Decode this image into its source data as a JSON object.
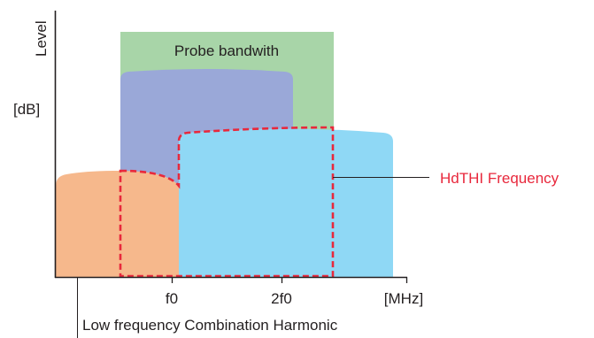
{
  "diagram": {
    "y_axis_label": "Level",
    "y_unit_label": "[dB]",
    "x_unit_label": "[MHz]",
    "x_tick_labels": [
      "f0",
      "2f0"
    ],
    "probe_bandwidth_label": "Probe bandwith",
    "hdthi_label": "HdTHI Frequency",
    "low_freq_label": "Low frequency Combination Harmonic"
  },
  "colors": {
    "probe_band": "#a8d5a8",
    "fundamental_band": "#9aa8d8",
    "harmonic_band": "#8fd8f5",
    "low_freq_band": "#f6b88c",
    "hdthi_outline": "#e8283c",
    "axis": "#231f20",
    "text": "#231f20"
  }
}
